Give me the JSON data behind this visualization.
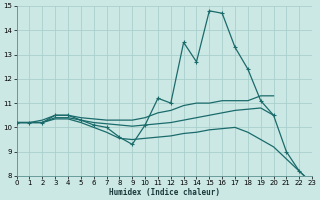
{
  "xlabel": "Humidex (Indice chaleur)",
  "xlim": [
    0,
    23
  ],
  "ylim": [
    8,
    15
  ],
  "bg_color": "#cce8e5",
  "grid_color": "#aad0cc",
  "line_color": "#1a6b6b",
  "series": [
    {
      "x": [
        0,
        1,
        2,
        3,
        4,
        5,
        6,
        7,
        8,
        9,
        10,
        11,
        12,
        13,
        14,
        15,
        16,
        17,
        18,
        19,
        20,
        21,
        22,
        23
      ],
      "y": [
        10.2,
        10.2,
        10.2,
        10.5,
        10.5,
        10.3,
        10.1,
        10.0,
        9.6,
        9.3,
        10.1,
        11.2,
        11.0,
        13.5,
        12.7,
        14.8,
        14.7,
        13.3,
        12.4,
        11.1,
        10.5,
        9.0,
        8.2,
        7.7
      ],
      "marker": "+",
      "markersize": 3.5,
      "linewidth": 0.9,
      "has_marker": true
    },
    {
      "x": [
        0,
        1,
        2,
        3,
        4,
        5,
        6,
        7,
        8,
        9,
        10,
        11,
        12,
        13,
        14,
        15,
        16,
        17,
        18,
        19,
        20
      ],
      "y": [
        10.2,
        10.2,
        10.3,
        10.5,
        10.5,
        10.4,
        10.35,
        10.3,
        10.3,
        10.3,
        10.4,
        10.6,
        10.7,
        10.9,
        11.0,
        11.0,
        11.1,
        11.1,
        11.1,
        11.3,
        11.3
      ],
      "marker": null,
      "markersize": 0,
      "linewidth": 0.9,
      "has_marker": false
    },
    {
      "x": [
        0,
        1,
        2,
        3,
        4,
        5,
        6,
        7,
        8,
        9,
        10,
        11,
        12,
        13,
        14,
        15,
        16,
        17,
        18,
        19,
        20
      ],
      "y": [
        10.2,
        10.2,
        10.2,
        10.4,
        10.4,
        10.3,
        10.2,
        10.15,
        10.1,
        10.05,
        10.1,
        10.15,
        10.2,
        10.3,
        10.4,
        10.5,
        10.6,
        10.7,
        10.75,
        10.8,
        10.5
      ],
      "marker": null,
      "markersize": 0,
      "linewidth": 0.9,
      "has_marker": false
    },
    {
      "x": [
        0,
        1,
        2,
        3,
        4,
        5,
        6,
        7,
        8,
        9,
        10,
        11,
        12,
        13,
        14,
        15,
        16,
        17,
        18,
        19,
        20,
        21,
        22,
        23
      ],
      "y": [
        10.2,
        10.2,
        10.2,
        10.35,
        10.35,
        10.2,
        10.0,
        9.8,
        9.55,
        9.5,
        9.55,
        9.6,
        9.65,
        9.75,
        9.8,
        9.9,
        9.95,
        10.0,
        9.8,
        9.5,
        9.2,
        8.7,
        8.2,
        7.7
      ],
      "marker": null,
      "markersize": 0,
      "linewidth": 0.9,
      "has_marker": false
    }
  ]
}
